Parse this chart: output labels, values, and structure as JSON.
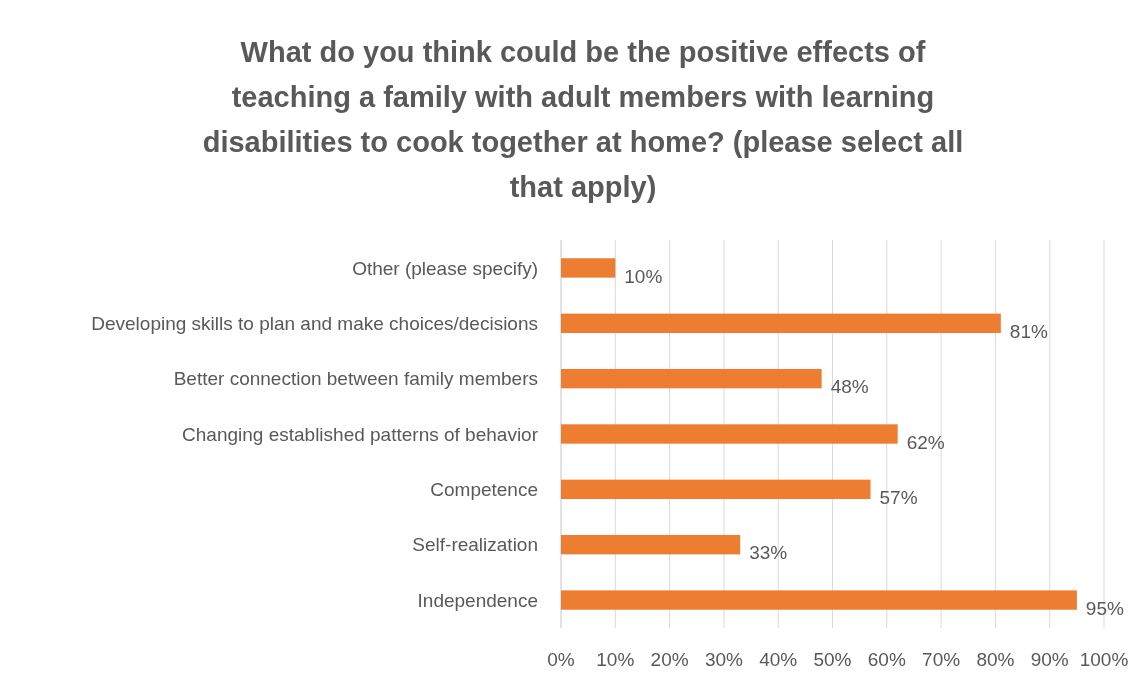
{
  "chart_data": {
    "type": "bar",
    "orientation": "horizontal",
    "title": "What do you think could be the positive effects of teaching a family with adult members with learning disabilities to cook together at home? (please select all that apply)",
    "categories": [
      "Other (please specify)",
      "Developing skills to plan and make choices/decisions",
      "Better connection between family members",
      "Changing established patterns of behavior",
      "Competence",
      "Self-realization",
      "Independence"
    ],
    "values": [
      10,
      81,
      48,
      62,
      57,
      33,
      95
    ],
    "value_labels": [
      "10%",
      "81%",
      "48%",
      "62%",
      "57%",
      "33%",
      "95%"
    ],
    "color": "#ed7d31",
    "xlim": [
      0,
      100
    ],
    "xticks": [
      {
        "value": 0,
        "label": "0%"
      },
      {
        "value": 10,
        "label": "10%"
      },
      {
        "value": 20,
        "label": "20%"
      },
      {
        "value": 30,
        "label": "30%"
      },
      {
        "value": 40,
        "label": "40%"
      },
      {
        "value": 50,
        "label": "50%"
      },
      {
        "value": 60,
        "label": "60%"
      },
      {
        "value": 70,
        "label": "70%"
      },
      {
        "value": 80,
        "label": "80%"
      },
      {
        "value": 90,
        "label": "90%"
      },
      {
        "value": 100,
        "label": "100%"
      }
    ],
    "grid": "x"
  }
}
